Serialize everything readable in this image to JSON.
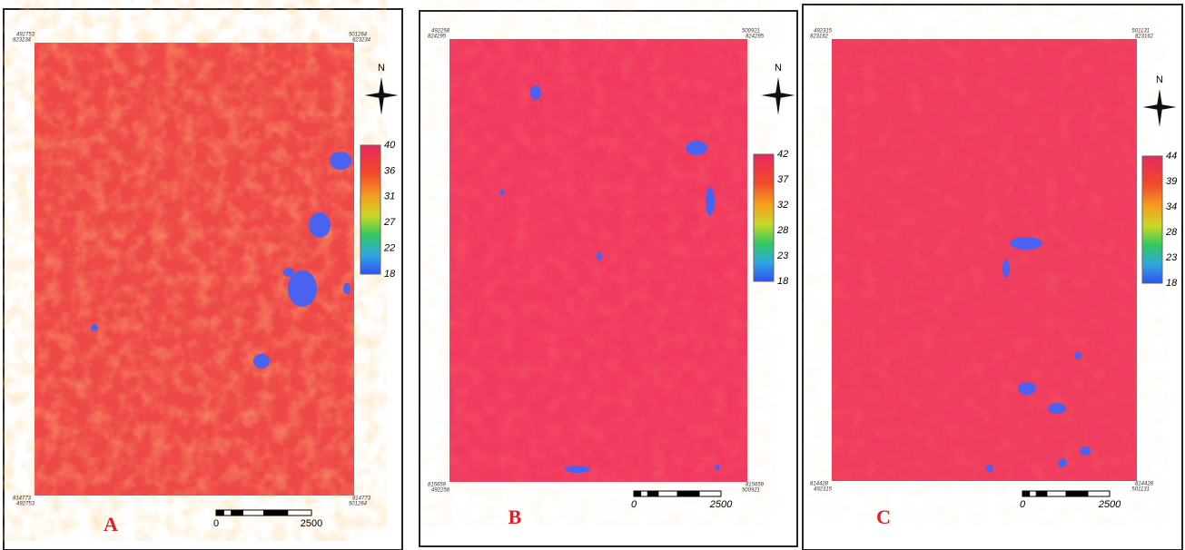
{
  "panels": [
    {
      "label": "A",
      "top_left": {
        "x": "492753",
        "y": "823234"
      },
      "top_right": {
        "x": "501264",
        "y": "823234"
      },
      "bottom_left": {
        "y": "814773",
        "x": "492753"
      },
      "bottom_right": {
        "y": "814773",
        "x": "501264"
      },
      "north": "N",
      "legend": [
        40,
        36,
        31,
        27,
        22,
        18
      ],
      "scale": [
        "0",
        "2500"
      ]
    },
    {
      "label": "B",
      "top_left": {
        "x": "492258",
        "y": "824295"
      },
      "top_right": {
        "x": "500921",
        "y": "824295"
      },
      "bottom_left": {
        "y": "815659",
        "x": "492258"
      },
      "bottom_right": {
        "y": "815659",
        "x": "500921"
      },
      "north": "N",
      "legend": [
        42,
        37,
        32,
        28,
        23,
        18
      ],
      "scale": [
        "0",
        "2500"
      ]
    },
    {
      "label": "C",
      "top_left": {
        "x": "492315",
        "y": "823162"
      },
      "top_right": {
        "x": "501131",
        "y": "823162"
      },
      "bottom_left": {
        "y": "814428",
        "x": "492315"
      },
      "bottom_right": {
        "y": "814428",
        "x": "501131"
      },
      "north": "N",
      "legend": [
        44,
        39,
        34,
        28,
        23,
        18
      ],
      "scale": [
        "0",
        "2500"
      ]
    }
  ]
}
